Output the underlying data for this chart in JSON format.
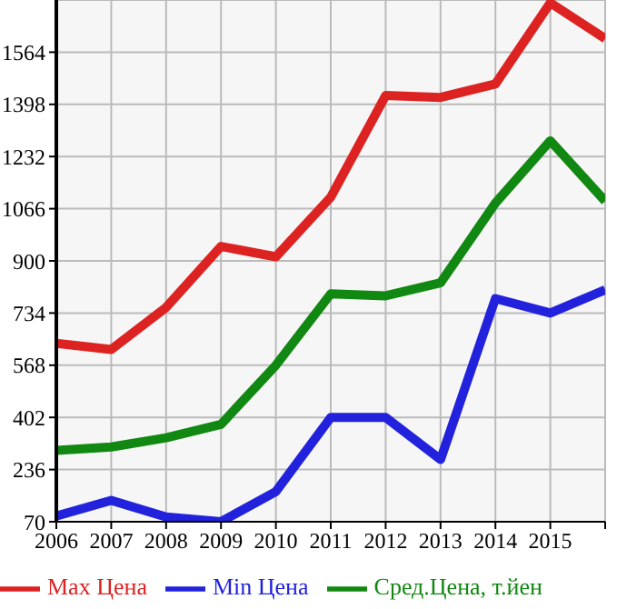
{
  "chart_data": {
    "type": "line",
    "x": [
      2006,
      2007,
      2008,
      2009,
      2010,
      2011,
      2012,
      2013,
      2014,
      2015,
      2016
    ],
    "series": [
      {
        "name": "Max Цена",
        "color": "#dd2222",
        "values": [
          638,
          618,
          752,
          946,
          913,
          1103,
          1426,
          1420,
          1463,
          1721,
          1607
        ]
      },
      {
        "name": "Min Цена",
        "color": "#2222dd",
        "values": [
          88,
          138,
          85,
          70,
          166,
          402,
          402,
          268,
          780,
          734,
          808
        ]
      },
      {
        "name": "Сред.Цена, т.йен",
        "color": "#118811",
        "values": [
          297,
          308,
          337,
          380,
          568,
          795,
          789,
          830,
          1084,
          1282,
          1090
        ]
      }
    ],
    "xlim": [
      2006,
      2016
    ],
    "xticks": [
      2006,
      2007,
      2008,
      2009,
      2010,
      2011,
      2012,
      2013,
      2014,
      2015,
      {
        "value": 2016,
        "label": null
      }
    ],
    "ylim": [
      70,
      1730
    ],
    "yticks": [
      70,
      236,
      402,
      568,
      734,
      900,
      1066,
      1232,
      1398,
      1564
    ],
    "grid": true,
    "legend": "bottom",
    "marker": "none",
    "line_style": "solid"
  }
}
